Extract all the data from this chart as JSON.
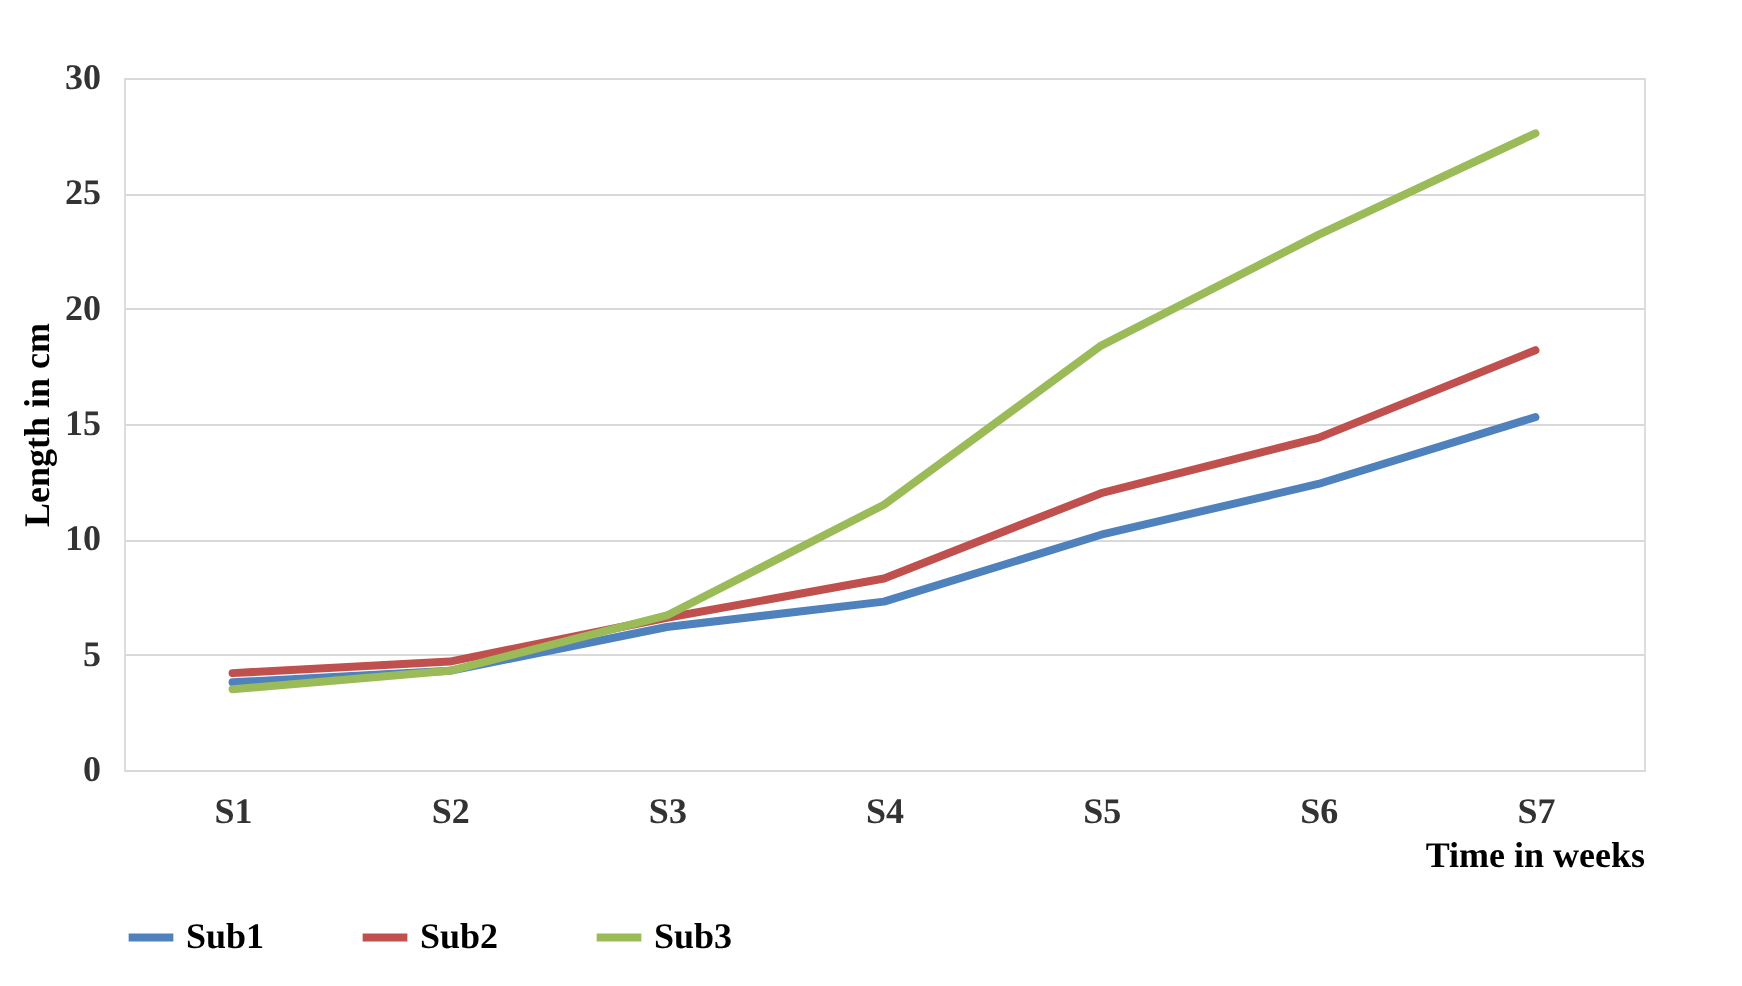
{
  "chart_data": {
    "type": "line",
    "xlabel": "Time in weeks",
    "ylabel": "Length in cm",
    "categories": [
      "S1",
      "S2",
      "S3",
      "S4",
      "S5",
      "S6",
      "S7"
    ],
    "series": [
      {
        "name": "Sub1",
        "color": "#4f81bd",
        "values": [
          3.8,
          4.3,
          6.2,
          7.3,
          10.2,
          12.4,
          15.3
        ]
      },
      {
        "name": "Sub2",
        "color": "#c0504d",
        "values": [
          4.2,
          4.7,
          6.6,
          8.3,
          12.0,
          14.4,
          18.2
        ]
      },
      {
        "name": "Sub3",
        "color": "#9bbb59",
        "values": [
          3.5,
          4.3,
          6.7,
          11.5,
          18.4,
          23.2,
          27.6
        ]
      }
    ],
    "ylim": [
      0,
      30
    ],
    "yticks": [
      0,
      5,
      10,
      15,
      20,
      25,
      30
    ],
    "grid": "y",
    "legend": "bottom",
    "marker": "none",
    "line_style": "solid"
  }
}
